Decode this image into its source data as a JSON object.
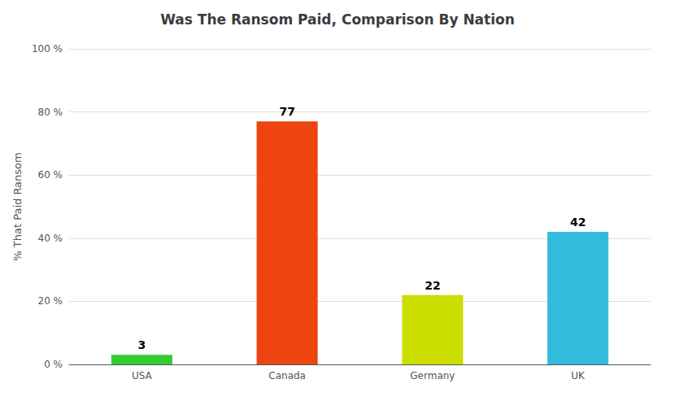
{
  "chart_data": {
    "type": "bar",
    "title": "Was The Ransom Paid, Comparison By Nation",
    "ylabel": "% That Paid Ransom",
    "categories": [
      "USA",
      "Canada",
      "Germany",
      "UK"
    ],
    "values": [
      3,
      77,
      22,
      42
    ],
    "colors": [
      "#33CC33",
      "#EE4411",
      "#CCDD00",
      "#33BBDD"
    ],
    "ylim": [
      0,
      100
    ],
    "yticks": [
      {
        "value": 0,
        "label": "0 %"
      },
      {
        "value": 20,
        "label": "20 %"
      },
      {
        "value": 40,
        "label": "40 %"
      },
      {
        "value": 60,
        "label": "60 %"
      },
      {
        "value": 80,
        "label": "80 %"
      },
      {
        "value": 100,
        "label": "100 %"
      }
    ],
    "grid": true,
    "data_labels": true
  }
}
